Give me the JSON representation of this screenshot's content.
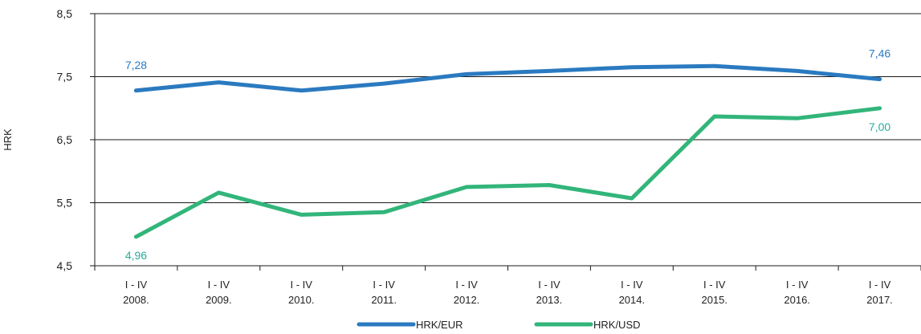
{
  "chart_data": {
    "type": "line",
    "ylabel": "HRK",
    "xlabel": "",
    "ylim": [
      4.5,
      8.5
    ],
    "yticks": [
      4.5,
      5.5,
      6.5,
      7.5,
      8.5
    ],
    "ytick_labels": [
      "4,5",
      "5,5",
      "6,5",
      "7,5",
      "8,5"
    ],
    "grid": "horizontal",
    "legend_position": "bottom",
    "categories": [
      [
        "I - IV",
        "2008."
      ],
      [
        "I - IV",
        "2009."
      ],
      [
        "I - IV",
        "2010."
      ],
      [
        "I - IV",
        "2011."
      ],
      [
        "I - IV",
        "2012."
      ],
      [
        "I - IV",
        "2013."
      ],
      [
        "I - IV",
        "2014."
      ],
      [
        "I - IV",
        "2015."
      ],
      [
        "I - IV",
        "2016."
      ],
      [
        "I - IV",
        "2017."
      ]
    ],
    "series": [
      {
        "name": "HRK/EUR",
        "color": "#2a7ac0",
        "values": [
          7.28,
          7.41,
          7.28,
          7.39,
          7.54,
          7.59,
          7.65,
          7.67,
          7.59,
          7.46
        ],
        "labels": [
          {
            "index": 0,
            "text": "7,28",
            "placement": "above"
          },
          {
            "index": 9,
            "text": "7,46",
            "placement": "above"
          }
        ]
      },
      {
        "name": "HRK/USD",
        "color": "#32b57a",
        "values": [
          4.96,
          5.66,
          5.31,
          5.35,
          5.75,
          5.78,
          5.57,
          6.87,
          6.84,
          7.0
        ],
        "labels": [
          {
            "index": 0,
            "text": "4,96",
            "placement": "below"
          },
          {
            "index": 9,
            "text": "7,00",
            "placement": "below"
          }
        ]
      }
    ]
  },
  "colors": {
    "axis": "#1a1a1a",
    "grid": "#1a1a1a",
    "text": "#222222",
    "label_eur": "#2a7ac0",
    "label_usd": "#2aaa9a"
  }
}
